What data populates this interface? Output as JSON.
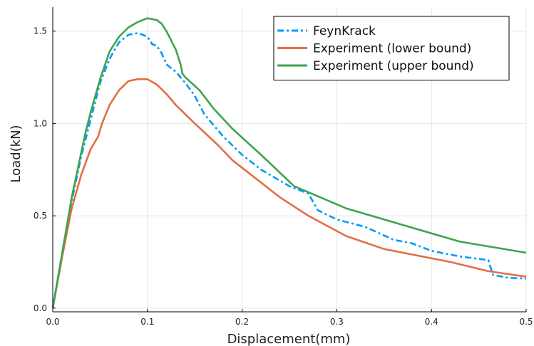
{
  "chart_data": {
    "type": "line",
    "title": "",
    "xlabel": "Displacement(mm)",
    "ylabel": "Load(kN)",
    "xlim": [
      0.0,
      0.5
    ],
    "ylim": [
      -0.02,
      1.63
    ],
    "xticks": [
      0.0,
      0.1,
      0.2,
      0.3,
      0.4,
      0.5
    ],
    "yticks": [
      0.0,
      0.5,
      1.0,
      1.5
    ],
    "xtick_labels": [
      "0.0",
      "0.1",
      "0.2",
      "0.3",
      "0.4",
      "0.5"
    ],
    "ytick_labels": [
      "0.0",
      "0.5",
      "1.0",
      "1.5"
    ],
    "grid": true,
    "legend_position": "top-right",
    "series": [
      {
        "name": "FeynKrack",
        "color": "#009af9",
        "style": "dashdot",
        "x": [
          0.0,
          0.01,
          0.02,
          0.03,
          0.04,
          0.05,
          0.06,
          0.07,
          0.08,
          0.09,
          0.1,
          0.105,
          0.11,
          0.115,
          0.12,
          0.125,
          0.13,
          0.14,
          0.15,
          0.16,
          0.18,
          0.2,
          0.22,
          0.25,
          0.27,
          0.28,
          0.3,
          0.33,
          0.36,
          0.38,
          0.4,
          0.43,
          0.46,
          0.465,
          0.48,
          0.5
        ],
        "y": [
          0.0,
          0.3,
          0.58,
          0.82,
          1.02,
          1.22,
          1.35,
          1.44,
          1.48,
          1.49,
          1.47,
          1.43,
          1.42,
          1.38,
          1.32,
          1.3,
          1.28,
          1.22,
          1.15,
          1.05,
          0.93,
          0.83,
          0.75,
          0.66,
          0.62,
          0.53,
          0.48,
          0.44,
          0.37,
          0.35,
          0.31,
          0.28,
          0.26,
          0.18,
          0.165,
          0.16
        ]
      },
      {
        "name": "Experiment (lower bound)",
        "color": "#e26f46",
        "style": "solid",
        "x": [
          0.0,
          0.01,
          0.02,
          0.03,
          0.04,
          0.048,
          0.052,
          0.06,
          0.07,
          0.08,
          0.09,
          0.1,
          0.11,
          0.12,
          0.13,
          0.15,
          0.175,
          0.19,
          0.215,
          0.24,
          0.27,
          0.31,
          0.35,
          0.38,
          0.42,
          0.46,
          0.5
        ],
        "y": [
          0.0,
          0.28,
          0.54,
          0.72,
          0.86,
          0.93,
          1.0,
          1.1,
          1.18,
          1.23,
          1.24,
          1.24,
          1.21,
          1.16,
          1.1,
          1.0,
          0.88,
          0.8,
          0.7,
          0.6,
          0.5,
          0.39,
          0.32,
          0.29,
          0.25,
          0.2,
          0.17
        ]
      },
      {
        "name": "Experiment (upper bound)",
        "color": "#3da44d",
        "style": "solid",
        "x": [
          0.0,
          0.01,
          0.02,
          0.03,
          0.035,
          0.04,
          0.05,
          0.06,
          0.07,
          0.08,
          0.09,
          0.1,
          0.11,
          0.115,
          0.12,
          0.13,
          0.135,
          0.137,
          0.14,
          0.155,
          0.17,
          0.19,
          0.22,
          0.255,
          0.31,
          0.37,
          0.43,
          0.5
        ],
        "y": [
          0.0,
          0.3,
          0.6,
          0.84,
          0.96,
          1.06,
          1.24,
          1.39,
          1.47,
          1.52,
          1.55,
          1.57,
          1.56,
          1.54,
          1.5,
          1.4,
          1.32,
          1.27,
          1.25,
          1.18,
          1.08,
          0.97,
          0.83,
          0.66,
          0.54,
          0.45,
          0.36,
          0.3
        ]
      }
    ]
  }
}
